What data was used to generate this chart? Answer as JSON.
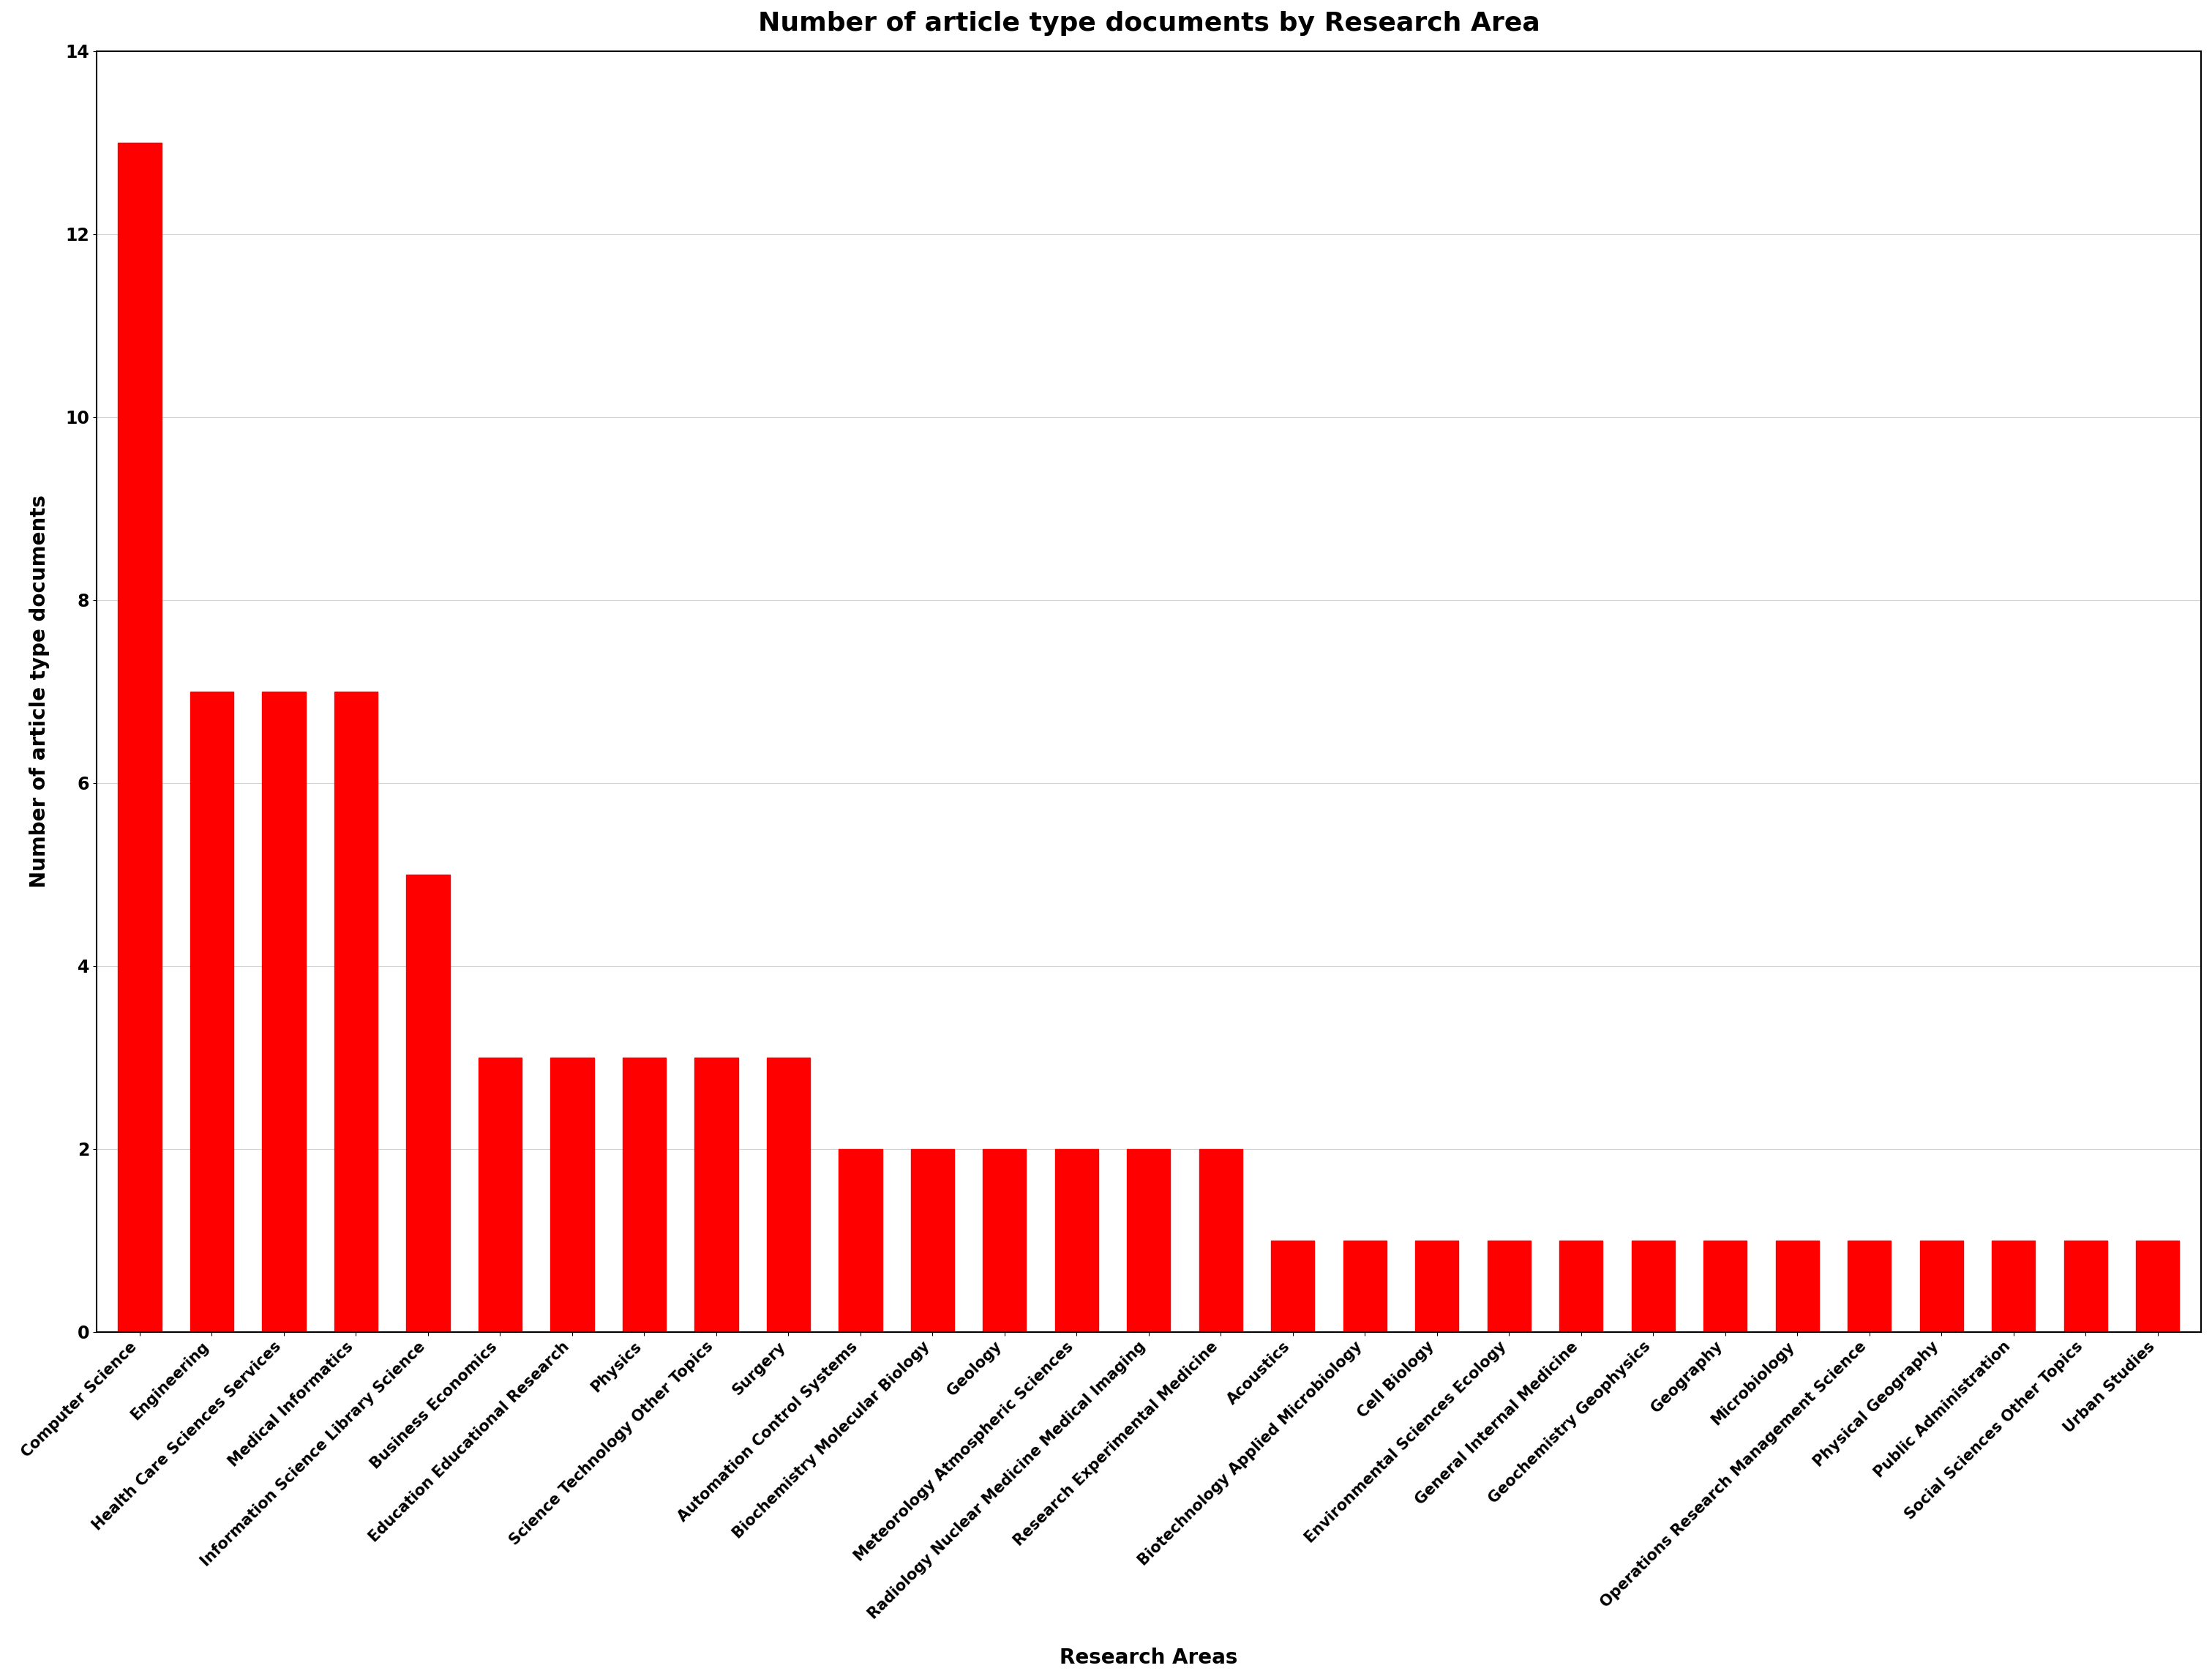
{
  "title": "Number of article type documents by Research Area",
  "xlabel": "Research Areas",
  "ylabel": "Number of article type documents",
  "bar_color": "#FF0000",
  "background_color": "#FFFFFF",
  "categories": [
    "Computer Science",
    "Engineering",
    "Health Care Sciences Services",
    "Medical Informatics",
    "Information Science Library Science",
    "Business Economics",
    "Education Educational Research",
    "Physics",
    "Science Technology Other Topics",
    "Surgery",
    "Automation Control Systems",
    "Biochemistry Molecular Biology",
    "Geology",
    "Meteorology Atmospheric Sciences",
    "Radiology Nuclear Medicine Medical Imaging",
    "Research Experimental Medicine",
    "Acoustics",
    "Biotechnology Applied Microbiology",
    "Cell Biology",
    "Environmental Sciences Ecology",
    "General Internal Medicine",
    "Geochemistry Geophysics",
    "Geography",
    "Microbiology",
    "Operations Research Management Science",
    "Physical Geography",
    "Public Administration",
    "Social Sciences Other Topics",
    "Urban Studies"
  ],
  "values": [
    13,
    7,
    7,
    7,
    5,
    3,
    3,
    3,
    3,
    3,
    2,
    2,
    2,
    2,
    2,
    2,
    1,
    1,
    1,
    1,
    1,
    1,
    1,
    1,
    1,
    1,
    1,
    1,
    1
  ],
  "ylim": [
    0,
    14
  ],
  "yticks": [
    0,
    2,
    4,
    6,
    8,
    10,
    12,
    14
  ],
  "title_fontsize": 26,
  "label_fontsize": 20,
  "tick_fontsize": 15
}
